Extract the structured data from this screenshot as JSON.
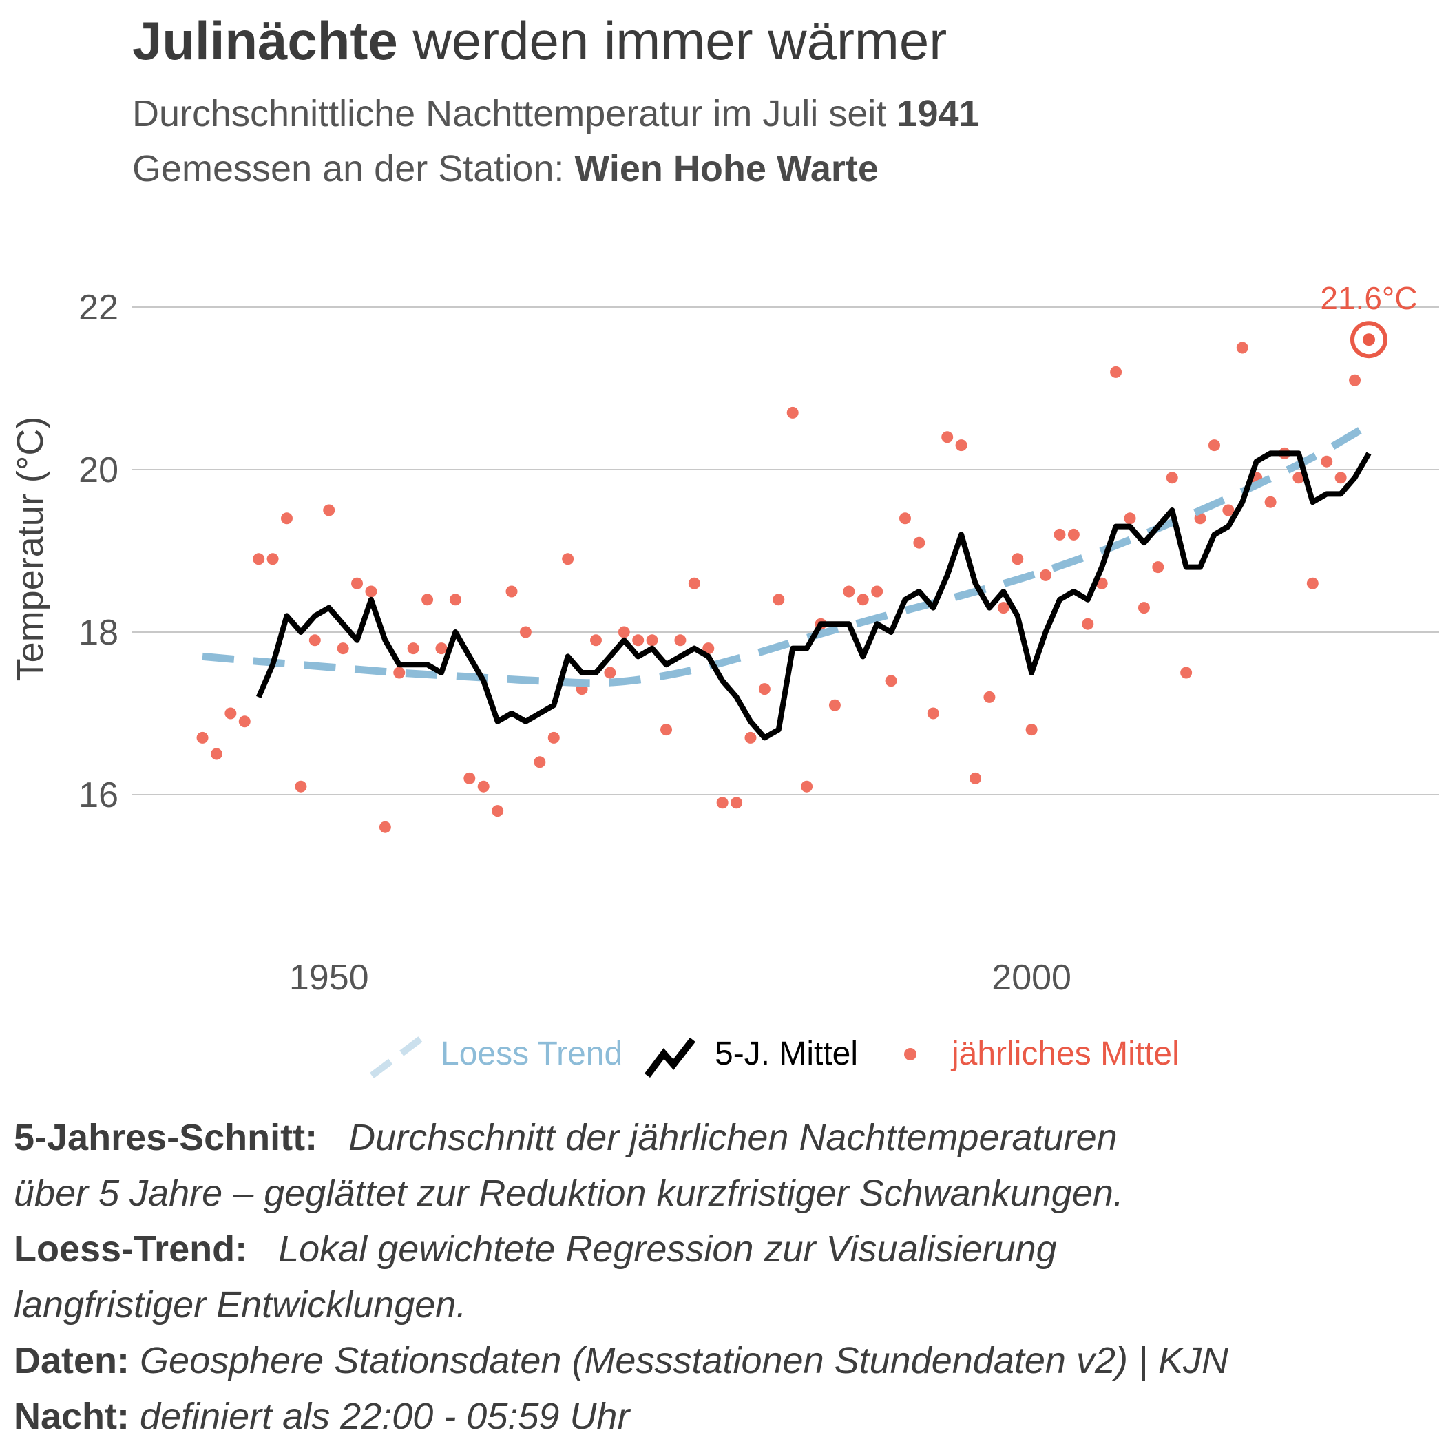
{
  "header": {
    "title_bold": "Julinächte",
    "title_rest": "werden immer wärmer",
    "subtitle1_text": "Durchschnittliche Nachttemperatur im Juli seit",
    "subtitle1_bold": "1941",
    "subtitle2_text": "Gemessen an der Station:",
    "subtitle2_bold": "Wien Hohe Warte"
  },
  "notes": [
    {
      "label": "5-Jahres-Schnitt:",
      "text": "Durchschnitt der jährlichen Nachttemperaturen"
    },
    {
      "label": "",
      "text": "über 5 Jahre – geglättet zur Reduktion kurzfristiger Schwankungen."
    },
    {
      "label": "Loess-Trend:",
      "text": "Lokal gewichtete Regression zur Visualisierung"
    },
    {
      "label": "",
      "text": "langfristiger Entwicklungen."
    },
    {
      "label": "Daten:",
      "text": "Geosphere Stationsdaten (Messstationen Stundendaten v2) | KJN"
    },
    {
      "label": "Nacht:",
      "text": "definiert als 22:00 - 05:59 Uhr"
    }
  ],
  "colors": {
    "points": "#f07060",
    "mean_line": "#000000",
    "trend": "#8dbcd8",
    "grid": "#c8c8c8",
    "annotation": "#ea5a47"
  },
  "chart_data": {
    "type": "line",
    "xlabel": "",
    "ylabel": "Temperatur (°C)",
    "xlim": [
      1936,
      2029
    ],
    "ylim": [
      14.8,
      22.4
    ],
    "x_ticks": [
      1950,
      2000
    ],
    "y_ticks": [
      16,
      18,
      20,
      22
    ],
    "grid": "horizontal",
    "legend_position": "bottom",
    "annotation": {
      "x": 2024,
      "y": 21.6,
      "label": "21.6°C"
    },
    "series": [
      {
        "name": "jährliches Mittel",
        "kind": "points",
        "x": [
          1941,
          1942,
          1943,
          1944,
          1945,
          1946,
          1947,
          1948,
          1949,
          1950,
          1951,
          1952,
          1953,
          1954,
          1955,
          1956,
          1957,
          1958,
          1959,
          1960,
          1961,
          1962,
          1963,
          1964,
          1965,
          1966,
          1967,
          1968,
          1969,
          1970,
          1971,
          1972,
          1973,
          1974,
          1975,
          1976,
          1977,
          1978,
          1979,
          1980,
          1981,
          1982,
          1983,
          1984,
          1985,
          1986,
          1987,
          1988,
          1989,
          1990,
          1991,
          1992,
          1993,
          1994,
          1995,
          1996,
          1997,
          1998,
          1999,
          2000,
          2001,
          2002,
          2003,
          2004,
          2005,
          2006,
          2007,
          2008,
          2009,
          2010,
          2011,
          2012,
          2013,
          2014,
          2015,
          2016,
          2017,
          2018,
          2019,
          2020,
          2021,
          2022,
          2023,
          2024
        ],
        "values": [
          16.7,
          16.5,
          17.0,
          16.9,
          18.9,
          18.9,
          19.4,
          16.1,
          17.9,
          19.5,
          17.8,
          18.6,
          18.5,
          15.6,
          17.5,
          17.8,
          18.4,
          17.8,
          18.4,
          16.2,
          16.1,
          15.8,
          18.5,
          18.0,
          16.4,
          16.7,
          18.9,
          17.3,
          17.9,
          17.5,
          18.0,
          17.9,
          17.9,
          16.8,
          17.9,
          18.6,
          17.8,
          15.9,
          15.9,
          16.7,
          17.3,
          18.4,
          20.7,
          16.1,
          18.1,
          17.1,
          18.5,
          18.4,
          18.5,
          17.4,
          19.4,
          19.1,
          17.0,
          20.4,
          20.3,
          16.2,
          17.2,
          18.3,
          18.9,
          16.8,
          18.7,
          19.2,
          19.2,
          18.1,
          18.6,
          21.2,
          19.4,
          18.3,
          18.8,
          19.9,
          17.5,
          19.4,
          20.3,
          19.5,
          21.5,
          19.9,
          19.6,
          20.2,
          19.9,
          18.6,
          20.1,
          19.9,
          21.1,
          21.6
        ]
      },
      {
        "name": "5-J. Mittel",
        "kind": "line",
        "x": [
          1945,
          1946,
          1947,
          1948,
          1949,
          1950,
          1951,
          1952,
          1953,
          1954,
          1955,
          1956,
          1957,
          1958,
          1959,
          1960,
          1961,
          1962,
          1963,
          1964,
          1965,
          1966,
          1967,
          1968,
          1969,
          1970,
          1971,
          1972,
          1973,
          1974,
          1975,
          1976,
          1977,
          1978,
          1979,
          1980,
          1981,
          1982,
          1983,
          1984,
          1985,
          1986,
          1987,
          1988,
          1989,
          1990,
          1991,
          1992,
          1993,
          1994,
          1995,
          1996,
          1997,
          1998,
          1999,
          2000,
          2001,
          2002,
          2003,
          2004,
          2005,
          2006,
          2007,
          2008,
          2009,
          2010,
          2011,
          2012,
          2013,
          2014,
          2015,
          2016,
          2017,
          2018,
          2019,
          2020,
          2021,
          2022,
          2023,
          2024
        ],
        "values": [
          17.2,
          17.6,
          18.2,
          18.0,
          18.2,
          18.3,
          18.1,
          17.9,
          18.4,
          17.9,
          17.6,
          17.6,
          17.6,
          17.5,
          18.0,
          17.7,
          17.4,
          16.9,
          17.0,
          16.9,
          17.0,
          17.1,
          17.7,
          17.5,
          17.5,
          17.7,
          17.9,
          17.7,
          17.8,
          17.6,
          17.7,
          17.8,
          17.7,
          17.4,
          17.2,
          16.9,
          16.7,
          16.8,
          17.8,
          17.8,
          18.1,
          18.1,
          18.1,
          17.7,
          18.1,
          18.0,
          18.4,
          18.5,
          18.3,
          18.7,
          19.2,
          18.6,
          18.3,
          18.5,
          18.2,
          17.5,
          18.0,
          18.4,
          18.5,
          18.4,
          18.8,
          19.3,
          19.3,
          19.1,
          19.3,
          19.5,
          18.8,
          18.8,
          19.2,
          19.3,
          19.6,
          20.1,
          20.2,
          20.2,
          20.2,
          19.6,
          19.7,
          19.7,
          19.9,
          20.2
        ]
      },
      {
        "name": "Loess Trend",
        "kind": "line",
        "x": [
          1941,
          1945,
          1950,
          1955,
          1960,
          1965,
          1970,
          1975,
          1980,
          1985,
          1990,
          1995,
          2000,
          2005,
          2010,
          2015,
          2020,
          2024
        ],
        "values": [
          17.7,
          17.64,
          17.57,
          17.5,
          17.45,
          17.4,
          17.38,
          17.5,
          17.72,
          17.98,
          18.22,
          18.45,
          18.7,
          19.0,
          19.35,
          19.73,
          20.15,
          20.55
        ]
      }
    ]
  }
}
